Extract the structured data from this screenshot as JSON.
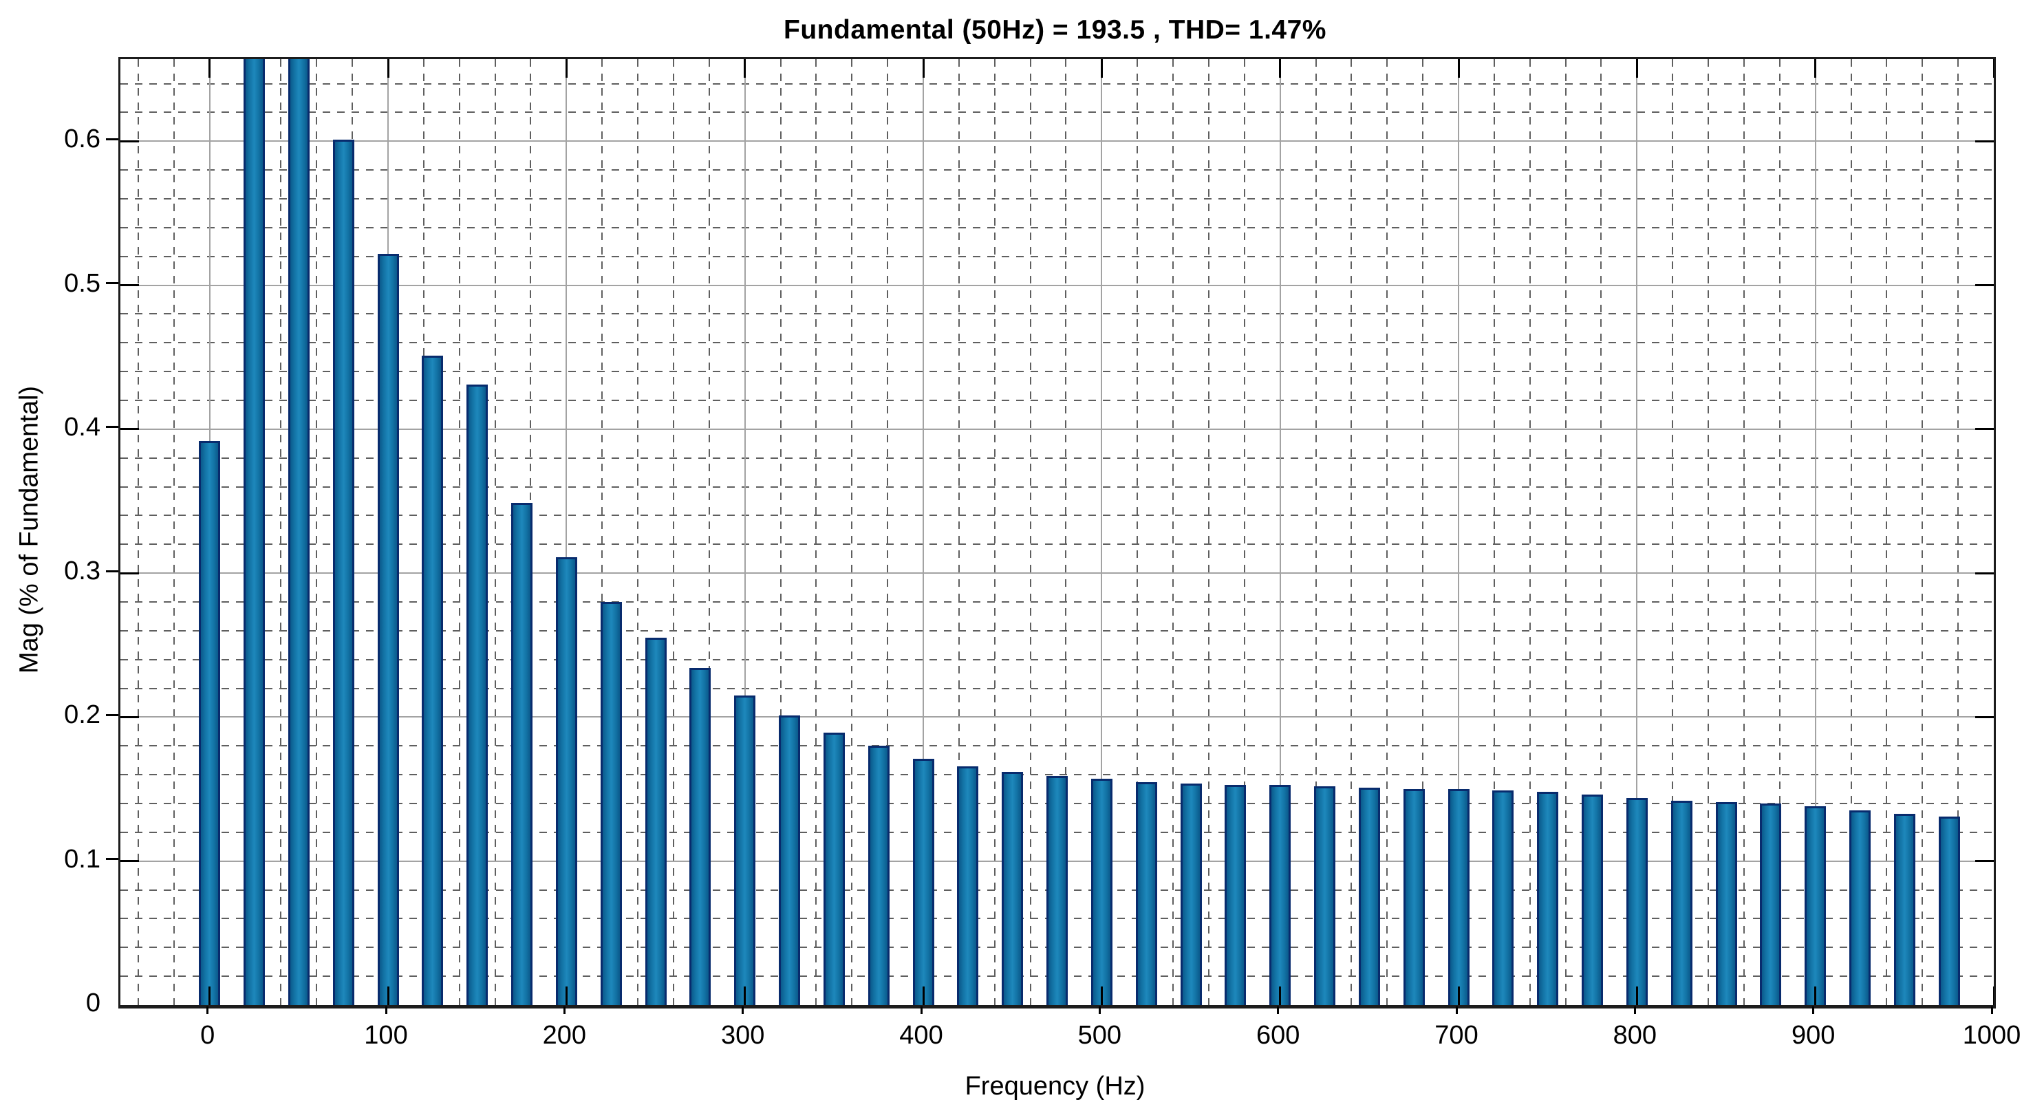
{
  "figure": {
    "title": "Fundamental (50Hz) = 193.5 , THD= 1.47%",
    "xlabel": "Frequency (Hz)",
    "ylabel": "Mag (% of Fundamental)"
  },
  "chart_data": {
    "type": "bar",
    "title": "Fundamental (50Hz) = 193.5 , THD= 1.47%",
    "xlabel": "Frequency (Hz)",
    "ylabel": "Mag (% of Fundamental)",
    "xlim": [
      -50,
      1000
    ],
    "ylim": [
      0,
      0.657
    ],
    "x_ticks": [
      0,
      100,
      200,
      300,
      400,
      500,
      600,
      700,
      800,
      900,
      1000
    ],
    "x_tick_labels": [
      "0",
      "100",
      "200",
      "300",
      "400",
      "500",
      "600",
      "700",
      "800",
      "900",
      "1000"
    ],
    "y_ticks": [
      0,
      0.1,
      0.2,
      0.3,
      0.4,
      0.5,
      0.6
    ],
    "y_tick_labels": [
      "0",
      "0.1",
      "0.2",
      "0.3",
      "0.4",
      "0.5",
      "0.6"
    ],
    "grid": {
      "major": true,
      "minor": true,
      "x_minor_step_hz": 20,
      "y_minor_step": 0.02
    },
    "legend": "none",
    "bar_spacing_hz": 25,
    "bar_width_hz": 12,
    "x": [
      0,
      25,
      50,
      75,
      100,
      125,
      150,
      175,
      200,
      225,
      250,
      275,
      300,
      325,
      350,
      375,
      400,
      425,
      450,
      475,
      500,
      525,
      550,
      575,
      600,
      625,
      650,
      675,
      700,
      725,
      750,
      775,
      800,
      825,
      850,
      875,
      900,
      925,
      950,
      975
    ],
    "values": [
      0.392,
      0.657,
      0.657,
      0.601,
      0.522,
      0.451,
      0.431,
      0.349,
      0.311,
      0.28,
      0.255,
      0.234,
      0.215,
      0.201,
      0.189,
      0.18,
      0.171,
      0.166,
      0.162,
      0.159,
      0.157,
      0.155,
      0.154,
      0.153,
      0.153,
      0.152,
      0.151,
      0.15,
      0.15,
      0.149,
      0.148,
      0.146,
      0.144,
      0.142,
      0.141,
      0.14,
      0.138,
      0.135,
      0.133,
      0.131
    ],
    "clipped_at_ymax_hz": [
      25,
      50
    ],
    "note": "Bars at 25 Hz and 50 Hz exceed the visible y-range and are clipped at the top of the axes; values are magnitude in % of the 50 Hz fundamental (fundamental = 193.5, THD = 1.47%).",
    "colors": {
      "bar_fill": "#1374a6",
      "bar_fill_light": "#1e88bc",
      "bar_fill_dark": "#0b5a8c",
      "bar_edge": "#082b6d",
      "grid_major": "#a3a3a3",
      "grid_minor": "#5f5f5f",
      "axis_box": "#1c1c1c",
      "text": "#000000",
      "background": "#ffffff"
    }
  }
}
